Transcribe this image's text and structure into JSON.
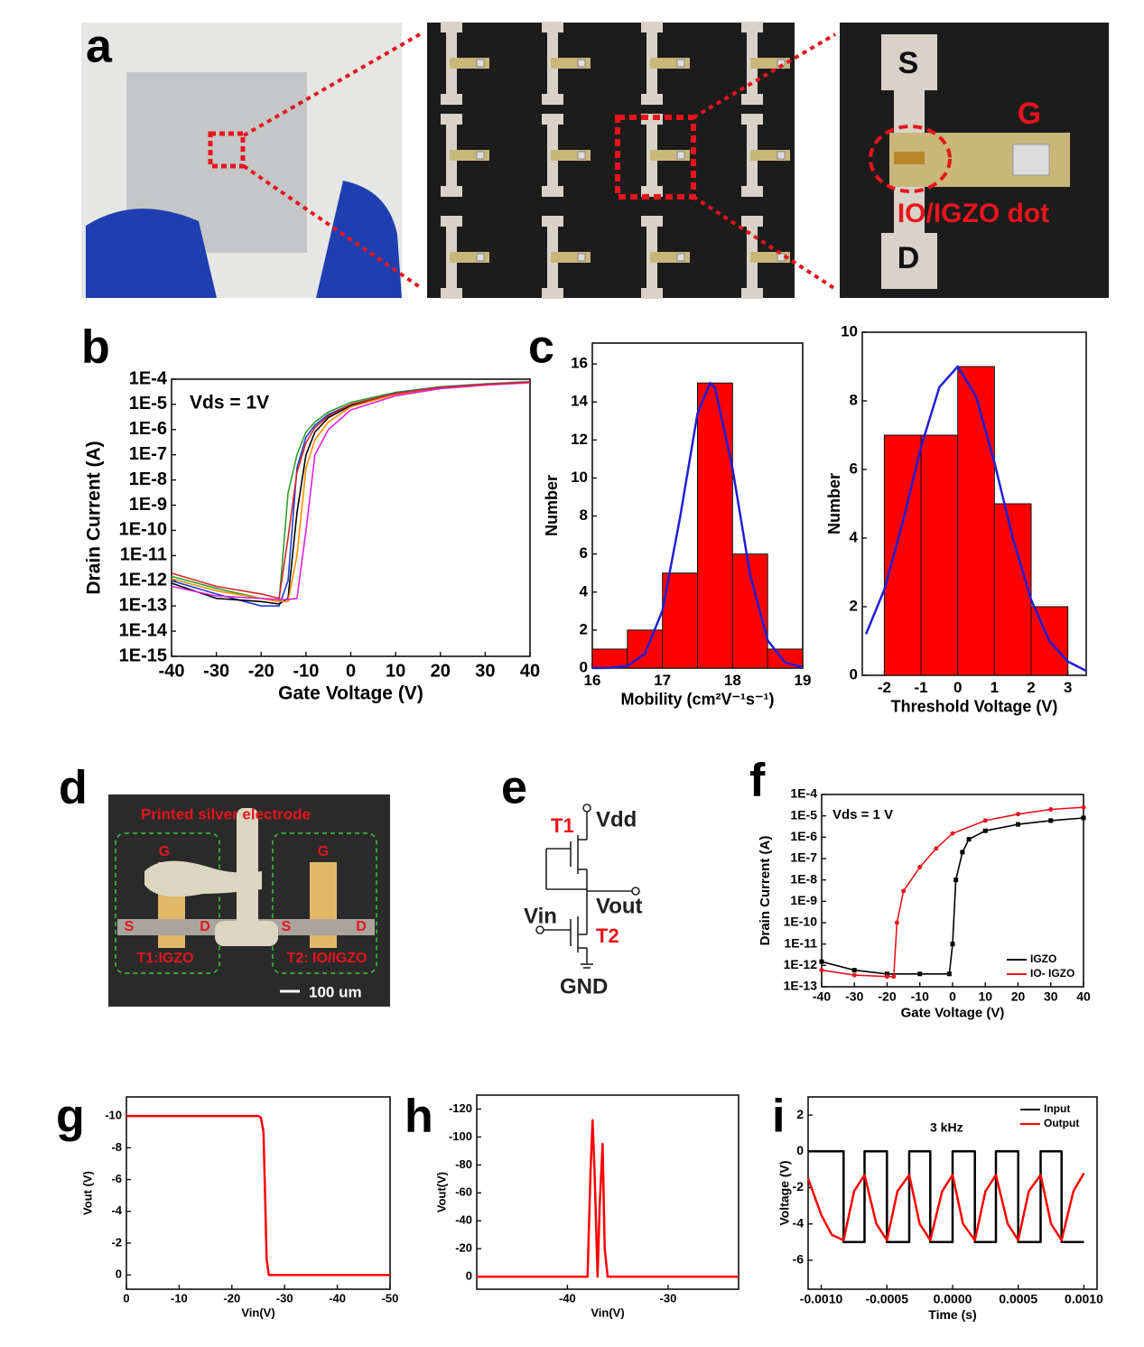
{
  "panel_labels": [
    "a",
    "b",
    "c",
    "d",
    "e",
    "f",
    "g",
    "h",
    "i"
  ],
  "photo_a": {
    "labels": [
      "S",
      "G",
      "IO/IGZO dot",
      "D"
    ]
  },
  "photo_d": {
    "labels": [
      "Printed silver electrode",
      "G",
      "G",
      "S",
      "D",
      "S",
      "D",
      "T1:IGZO",
      "T2: IO/IGZO",
      "100 um"
    ]
  },
  "circuit": {
    "labels": [
      "T1",
      "Vdd",
      "Vout",
      "Vin",
      "T2",
      "GND"
    ]
  },
  "chart_data": [
    {
      "type": "line",
      "log_y": true,
      "xlabel": "Gate Voltage (V)",
      "ylabel": "Drain Current (A)",
      "annotation": "Vds = 1V",
      "xlim": [
        -40,
        40
      ],
      "xticks": [
        -40,
        -30,
        -20,
        -10,
        0,
        10,
        20,
        30,
        40
      ],
      "ylim": [
        1e-15,
        0.0001
      ],
      "yticks": [
        {
          "value": 0.0001,
          "label": "1E-4"
        },
        {
          "value": 1e-05,
          "label": "1E-5"
        },
        {
          "value": 1e-06,
          "label": "1E-6"
        },
        {
          "value": 1e-07,
          "label": "1E-7"
        },
        {
          "value": 1e-08,
          "label": "1E-8"
        },
        {
          "value": 1e-09,
          "label": "1E-9"
        },
        {
          "value": 1e-10,
          "label": "1E-10"
        },
        {
          "value": 1e-11,
          "label": "1E-11"
        },
        {
          "value": 1e-12,
          "label": "1E-12"
        },
        {
          "value": 1e-13,
          "label": "1E-13"
        },
        {
          "value": 1e-14,
          "label": "1E-14"
        },
        {
          "value": 1e-15,
          "label": "1E-15"
        }
      ],
      "x": [
        -40,
        -30,
        -20,
        -16,
        -14,
        -12,
        -10,
        -8,
        -5,
        0,
        10,
        20,
        30,
        40
      ],
      "series": [
        {
          "color": "#2ca02c",
          "values": [
            1.5e-12,
            5e-13,
            2e-13,
            1.5e-13,
            3e-09,
            1e-07,
            8e-07,
            2e-06,
            5e-06,
            1.2e-05,
            3e-05,
            5e-05,
            6.5e-05,
            8e-05
          ]
        },
        {
          "color": "#1f3fd6",
          "values": [
            1e-12,
            3e-13,
            1e-13,
            1e-13,
            1e-12,
            3e-08,
            5e-07,
            1.5e-06,
            4e-06,
            1e-05,
            2.8e-05,
            4.8e-05,
            6.3e-05,
            7.8e-05
          ]
        },
        {
          "color": "#000000",
          "values": [
            8e-13,
            2e-13,
            1.5e-13,
            1.2e-13,
            2e-13,
            5e-10,
            1e-07,
            8e-07,
            3e-06,
            9e-06,
            2.6e-05,
            4.6e-05,
            6e-05,
            7.5e-05
          ]
        },
        {
          "color": "#ff8c00",
          "values": [
            1.2e-12,
            4e-13,
            2e-13,
            1.5e-13,
            1.5e-13,
            1e-11,
            3e-08,
            4e-07,
            2e-06,
            8e-06,
            2.5e-05,
            4.5e-05,
            6e-05,
            7.5e-05
          ]
        },
        {
          "color": "#e020e0",
          "values": [
            6e-13,
            2.5e-13,
            2e-13,
            1.8e-13,
            1.8e-13,
            2e-13,
            1e-10,
            1e-07,
            1e-06,
            6e-06,
            2.2e-05,
            4.2e-05,
            5.8e-05,
            7.2e-05
          ]
        },
        {
          "color": "#d62728",
          "values": [
            2e-12,
            6e-13,
            3e-13,
            2e-13,
            5e-11,
            2e-08,
            3e-07,
            1.2e-06,
            3.5e-06,
            1e-05,
            2.7e-05,
            4.7e-05,
            6.2e-05,
            7.7e-05
          ]
        }
      ]
    },
    {
      "type": "histogram",
      "xlabel": "Mobility (cm²V⁻¹s⁻¹)",
      "ylabel": "Number",
      "color": "#ff0000",
      "bins": [
        16,
        16.5,
        17,
        17.5,
        18,
        18.5,
        19
      ],
      "counts": [
        1,
        2,
        5,
        15,
        6,
        1
      ],
      "xlim": [
        16,
        19
      ],
      "xticks": [
        16,
        17,
        18,
        19
      ],
      "ylim": [
        0,
        17.1
      ],
      "yticks": [
        0,
        2,
        4,
        6,
        8,
        10,
        12,
        14,
        16
      ],
      "fit": {
        "color": "#1f1fd6",
        "x": [
          16,
          16.25,
          16.5,
          16.75,
          17,
          17.25,
          17.5,
          17.68,
          17.75,
          18,
          18.25,
          18.5,
          18.75,
          19
        ],
        "values": [
          0,
          0.01,
          0.12,
          0.75,
          3.03,
          7.9,
          13.4,
          15,
          14.75,
          10.5,
          4.9,
          1.46,
          0.29,
          0.04
        ]
      }
    },
    {
      "type": "histogram",
      "xlabel": "Threshold Voltage (V)",
      "ylabel": "Number",
      "color": "#ff0000",
      "bins": [
        -2,
        -1,
        0,
        1,
        2,
        3
      ],
      "counts": [
        7,
        7,
        9,
        5,
        2
      ],
      "xlim": [
        -2.6,
        3.5
      ],
      "xticks": [
        -2,
        -1,
        0,
        1,
        2,
        3
      ],
      "ylim": [
        0,
        10
      ],
      "yticks": [
        0,
        2,
        4,
        6,
        8,
        10
      ],
      "fit": {
        "color": "#1f1fd6",
        "x": [
          -2.5,
          -2,
          -1.5,
          -1,
          -0.5,
          0,
          0.5,
          1,
          1.5,
          2,
          2.5,
          3,
          3.5
        ],
        "values": [
          1.2,
          2.5,
          4.45,
          6.65,
          8.4,
          9,
          8.13,
          6.2,
          4,
          2.2,
          1,
          0.4,
          0.13
        ]
      }
    },
    {
      "type": "line",
      "log_y": true,
      "markers": true,
      "xlabel": "Gate Voltage (V)",
      "ylabel": "Drain Current (A)",
      "annotation": "Vds = 1 V",
      "legend": "lower right",
      "xlim": [
        -40,
        40
      ],
      "xticks": [
        -40,
        -30,
        -20,
        -10,
        0,
        10,
        20,
        30,
        40
      ],
      "ylim": [
        1e-13,
        0.0001
      ],
      "yticks": [
        {
          "value": 0.0001,
          "label": "1E-4"
        },
        {
          "value": 1e-05,
          "label": "1E-5"
        },
        {
          "value": 1e-06,
          "label": "1E-6"
        },
        {
          "value": 1e-07,
          "label": "1E-7"
        },
        {
          "value": 1e-08,
          "label": "1E-8"
        },
        {
          "value": 1e-09,
          "label": "1E-9"
        },
        {
          "value": 1e-10,
          "label": "1E-10"
        },
        {
          "value": 1e-11,
          "label": "1E-11"
        },
        {
          "value": 1e-12,
          "label": "1E-12"
        },
        {
          "value": 1e-13,
          "label": "1E-13"
        }
      ],
      "series": [
        {
          "name": "IGZO",
          "color": "#000000",
          "x": [
            -40,
            -30,
            -20,
            -10,
            -1,
            0,
            1,
            3,
            5,
            10,
            20,
            30,
            40
          ],
          "values": [
            1.5e-12,
            6e-13,
            4e-13,
            4e-13,
            4e-13,
            1e-11,
            1e-08,
            2e-07,
            8e-07,
            2e-06,
            4e-06,
            6e-06,
            8e-06
          ]
        },
        {
          "name": "IO- IGZO",
          "color": "#e8141c",
          "x": [
            -40,
            -30,
            -20,
            -18,
            -17,
            -15,
            -10,
            -5,
            0,
            10,
            20,
            30,
            40
          ],
          "values": [
            6e-13,
            3.5e-13,
            3e-13,
            3e-13,
            1e-10,
            3e-09,
            4e-08,
            3e-07,
            1.5e-06,
            6e-06,
            1.2e-05,
            2e-05,
            2.5e-05
          ]
        }
      ]
    },
    {
      "type": "line",
      "xlabel": "Vin(V)",
      "ylabel": "Vout (V)",
      "xlim": [
        0,
        -50
      ],
      "xticks": [
        0,
        -10,
        -20,
        -30,
        -40,
        -50
      ],
      "ylim": [
        0.9,
        -11.2
      ],
      "yticks": [
        -10,
        -8,
        -6,
        -4,
        -2,
        0
      ],
      "series": [
        {
          "color": "#ff0000",
          "x": [
            0,
            -10,
            -20,
            -25,
            -25.5,
            -26,
            -26.3,
            -26.6,
            -27,
            -30,
            -40,
            -50
          ],
          "values": [
            -10,
            -10,
            -10,
            -10,
            -9.9,
            -9,
            -5,
            -1,
            0,
            0,
            0,
            0
          ]
        }
      ]
    },
    {
      "type": "line",
      "xlabel": "Vin(V)",
      "ylabel": "Vout(V)",
      "xlim": [
        -49,
        -23
      ],
      "xticks": [
        -40,
        -30
      ],
      "ylim": [
        9,
        -130
      ],
      "yticks": [
        -120,
        -100,
        -80,
        -60,
        -40,
        -20,
        0
      ],
      "series": [
        {
          "color": "#ff0000",
          "x": [
            -49,
            -38,
            -37.7,
            -37.5,
            -37.3,
            -37,
            -36.8,
            -36.5,
            -36.3,
            -36,
            -23
          ],
          "values": [
            0,
            0,
            -75,
            -112,
            -75,
            0,
            -50,
            -95,
            -20,
            0,
            0
          ]
        }
      ]
    },
    {
      "type": "line",
      "xlabel": "Time (s)",
      "ylabel": "Voltage (V)",
      "annotation": "3 kHz",
      "legend": "upper right",
      "xlim": [
        -0.0011,
        0.0011
      ],
      "xticks": [
        {
          "value": -0.001,
          "label": "-0.0010"
        },
        {
          "value": -0.0005,
          "label": "-0.0005"
        },
        {
          "value": 0,
          "label": "0.0000"
        },
        0.0005,
        {
          "value": 0.001,
          "label": "0.0010"
        }
      ],
      "ylim": [
        -7.6,
        3
      ],
      "yticks": [
        -6,
        -4,
        -2,
        0,
        2
      ],
      "series": [
        {
          "name": "Input",
          "color": "#000000",
          "x": [
            -0.0011,
            -0.00083,
            -0.00083,
            -0.00067,
            -0.00067,
            -0.0005,
            -0.0005,
            -0.00033,
            -0.00033,
            -0.00017,
            -0.00017,
            0,
            0,
            0.00017,
            0.00017,
            0.00033,
            0.00033,
            0.0005,
            0.0005,
            0.00067,
            0.00067,
            0.00083,
            0.00083,
            0.001
          ],
          "values": [
            0,
            0,
            -5,
            -5,
            0,
            0,
            -5,
            -5,
            0,
            0,
            -5,
            -5,
            0,
            0,
            -5,
            -5,
            0,
            0,
            -5,
            -5,
            0,
            0,
            -5,
            -5
          ]
        },
        {
          "name": "Output",
          "color": "#ff0000",
          "x": [
            -0.0011,
            -0.001,
            -0.00092,
            -0.00083,
            -0.00075,
            -0.00067,
            -0.00058,
            -0.0005,
            -0.00042,
            -0.00033,
            -0.00025,
            -0.00017,
            -8e-05,
            0,
            8e-05,
            0.00017,
            0.00025,
            0.00033,
            0.00042,
            0.0005,
            0.00058,
            0.00067,
            0.00075,
            0.00083,
            0.00092,
            0.001
          ],
          "values": [
            -1.5,
            -3.5,
            -4.6,
            -4.9,
            -2.2,
            -1.3,
            -4,
            -4.9,
            -2.2,
            -1.3,
            -4,
            -4.9,
            -2.2,
            -1.3,
            -4,
            -4.9,
            -2.2,
            -1.3,
            -4,
            -4.9,
            -2.2,
            -1.3,
            -4,
            -4.9,
            -2.2,
            -1.2
          ]
        }
      ]
    }
  ]
}
